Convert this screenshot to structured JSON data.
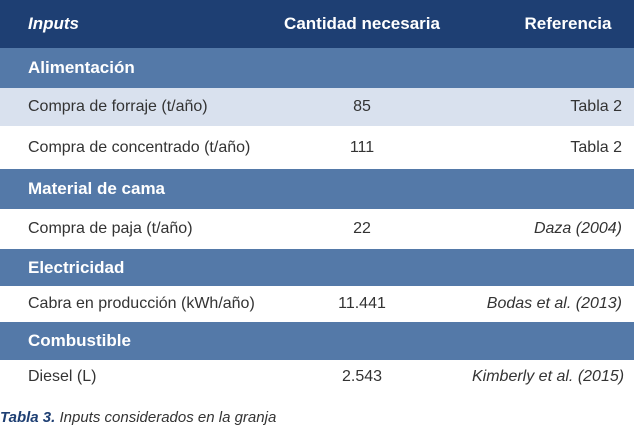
{
  "header": {
    "col1": "Inputs",
    "col2": "Cantidad necesaria",
    "col3": "Referencia"
  },
  "sections": [
    {
      "title": "Alimentación",
      "rows": [
        {
          "input": "Compra de forraje (t/año)",
          "cantidad": "85",
          "referencia": "Tabla 2"
        },
        {
          "input": "Compra de concentrado (t/año)",
          "cantidad": "111",
          "referencia": "Tabla 2"
        }
      ]
    },
    {
      "title": "Material de cama",
      "rows": [
        {
          "input": "Compra de paja (t/año)",
          "cantidad": "22",
          "referencia": "Daza (2004)"
        }
      ]
    },
    {
      "title": "Electricidad",
      "rows": [
        {
          "input": "Cabra en producción (kWh/año)",
          "cantidad": "11.441",
          "referencia": "Bodas et al. (2013)"
        }
      ]
    },
    {
      "title": "Combustible",
      "rows": [
        {
          "input": "Diesel (L)",
          "cantidad": "2.543",
          "referencia": "Kimberly et al. (2015)"
        }
      ]
    }
  ],
  "caption": {
    "label": "Tabla 3.",
    "text": " Inputs considerados en la granja"
  },
  "colors": {
    "header_bg": "#1e3f73",
    "section_bg": "#5479a8",
    "alt_row_bg": "#d9e1ee"
  }
}
